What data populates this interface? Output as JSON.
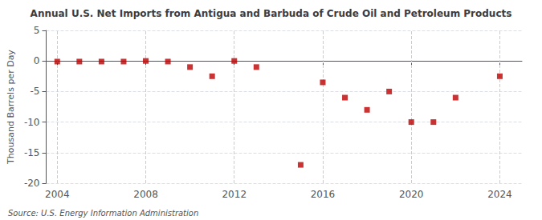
{
  "chart_data": {
    "type": "scatter",
    "title": "Annual U.S. Net Imports from Antigua and Barbuda of Crude Oil and Petroleum Products",
    "ylabel": "Thousand Barrels per Day",
    "annotations": [
      "Source: U.S. Energy Information Administration"
    ],
    "x": [
      2004,
      2005,
      2006,
      2007,
      2008,
      2009,
      2010,
      2011,
      2012,
      2013,
      2015,
      2016,
      2017,
      2018,
      2019,
      2020,
      2021,
      2022,
      2024
    ],
    "values": [
      -0.1,
      -0.1,
      -0.1,
      -0.1,
      0.0,
      -0.1,
      -1.0,
      -2.5,
      0.0,
      -1.0,
      -17.0,
      -3.5,
      -6.0,
      -8.0,
      -5.0,
      -10.0,
      -10.0,
      -6.0,
      -2.5
    ],
    "color": "#bb0000",
    "marker": "square",
    "xlim": [
      2003.5,
      2025
    ],
    "xticks": [
      2004,
      2008,
      2012,
      2016,
      2020,
      2024
    ],
    "ylim": [
      -20,
      5
    ],
    "yticks": [
      5,
      0,
      -5,
      -10,
      -15,
      -20
    ],
    "grid": true
  }
}
